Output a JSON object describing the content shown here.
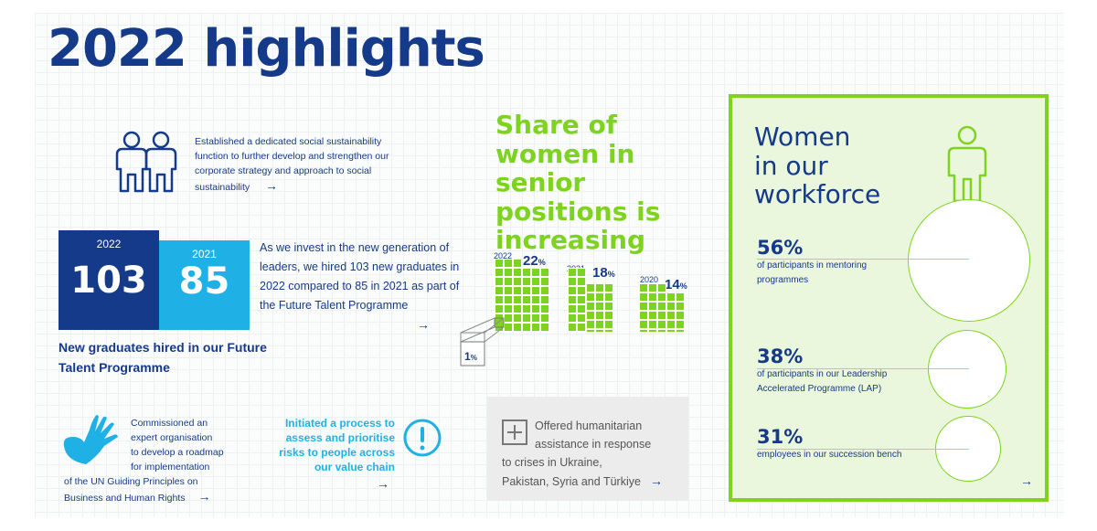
{
  "title": "2022 highlights",
  "social": {
    "text": "Established a dedicated social sustainability function to further develop and strengthen our corporate strategy and approach to social sustainability",
    "arrow": "→",
    "icon": "two-people-icon"
  },
  "graduates": {
    "year_2022": "2022",
    "value_2022": "103",
    "year_2021": "2021",
    "value_2021": "85",
    "text": "As we invest in the new generation of leaders, we hired 103 new graduates in 2022 compared to 85 in 2021 as part of the Future Talent Programme",
    "arrow": "→",
    "caption": "New graduates hired in our Future Talent Programme"
  },
  "senior": {
    "heading": "Share of women in senior positions is increasing",
    "bars": [
      {
        "year": "2022",
        "value": 22,
        "label": "22",
        "unit": "%"
      },
      {
        "year": "2021",
        "value": 18,
        "label": "18",
        "unit": "%"
      },
      {
        "year": "2020",
        "value": 14,
        "label": "14",
        "unit": "%"
      }
    ],
    "legend_value": "1",
    "legend_unit": "%"
  },
  "un": {
    "text": "Commissioned an expert organisation to develop a roadmap for implementation of the UN Guiding Principles on Business and Human Rights",
    "line1": "Commissioned an",
    "line2": "expert organisation",
    "line3": "to develop a roadmap",
    "line4": "for implementation",
    "line5": "of the UN Guiding Principles on",
    "line6": "Business and Human Rights",
    "arrow": "→",
    "icon": "hand-icon"
  },
  "risk": {
    "text": "Initiated a process to assess and prioritise risks to people across our value chain",
    "arrow": "→",
    "icon": "exclamation-circle-icon"
  },
  "humanitarian": {
    "text": "Offered humanitarian assistance in response to crises in Ukraine, Pakistan, Syria and Türkiye",
    "line1": "Offered humanitarian",
    "line2": "assistance in response",
    "line3": "to crises in Ukraine,",
    "line4": "Pakistan, Syria and Türkiye",
    "arrow": "→",
    "icon": "plus-box-icon"
  },
  "workforce": {
    "title_l1": "Women",
    "title_l2": "in our",
    "title_l3": "workforce",
    "icon": "person-icon",
    "stats": [
      {
        "value": "56%",
        "text_l1": "of participants in mentoring",
        "text_l2": "programmes",
        "share": 0.56
      },
      {
        "value": "38%",
        "text_l1": "of participants in our Leadership",
        "text_l2": "Accelerated Programme (LAP)",
        "share": 0.38
      },
      {
        "value": "31%",
        "text_l1": "employees in our succession bench",
        "text_l2": "",
        "share": 0.31
      }
    ],
    "arrow": "→"
  },
  "colors": {
    "navy": "#163a8a",
    "cyan": "#1fb1e6",
    "green": "#7ed321",
    "light_green": "#eaf7dc",
    "gray": "#ececec"
  }
}
